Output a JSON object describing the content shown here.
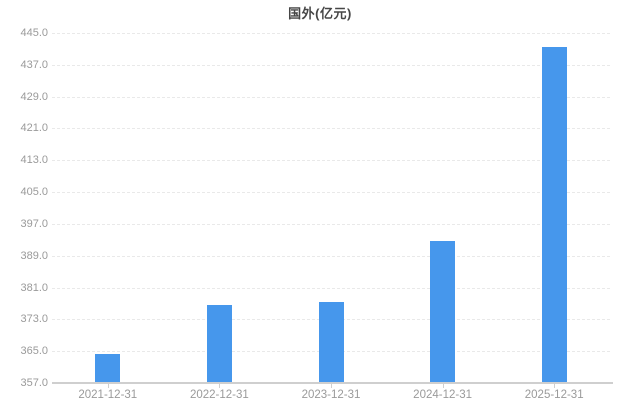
{
  "chart_data": {
    "type": "bar",
    "title": "国外(亿元)",
    "categories": [
      "2021-12-31",
      "2022-12-31",
      "2023-12-31",
      "2024-12-31",
      "2025-12-31"
    ],
    "values": [
      364.2,
      376.7,
      377.3,
      392.8,
      441.5
    ],
    "series_name": "国外",
    "xlabel": "",
    "ylabel": "",
    "ylim": [
      357.0,
      445.0
    ],
    "ytick_step": 8.0,
    "yticks": [
      445.0,
      437.0,
      429.0,
      421.0,
      413.0,
      405.0,
      397.0,
      389.0,
      381.0,
      373.0,
      365.0,
      357.0
    ],
    "ytick_labels": [
      "445.0",
      "437.0",
      "429.0",
      "421.0",
      "413.0",
      "405.0",
      "397.0",
      "389.0",
      "381.0",
      "373.0",
      "365.0",
      "357.0"
    ],
    "grid": "horizontal-dashed",
    "legend_position": "none",
    "bar_color": "#4697ec"
  },
  "colors": {
    "background": "#ffffff",
    "bar": "#4697ec",
    "axis_line": "#cfcfcf",
    "grid_line": "#e9e9e9",
    "tick_label": "#9a9a9a",
    "title": "#464646"
  }
}
